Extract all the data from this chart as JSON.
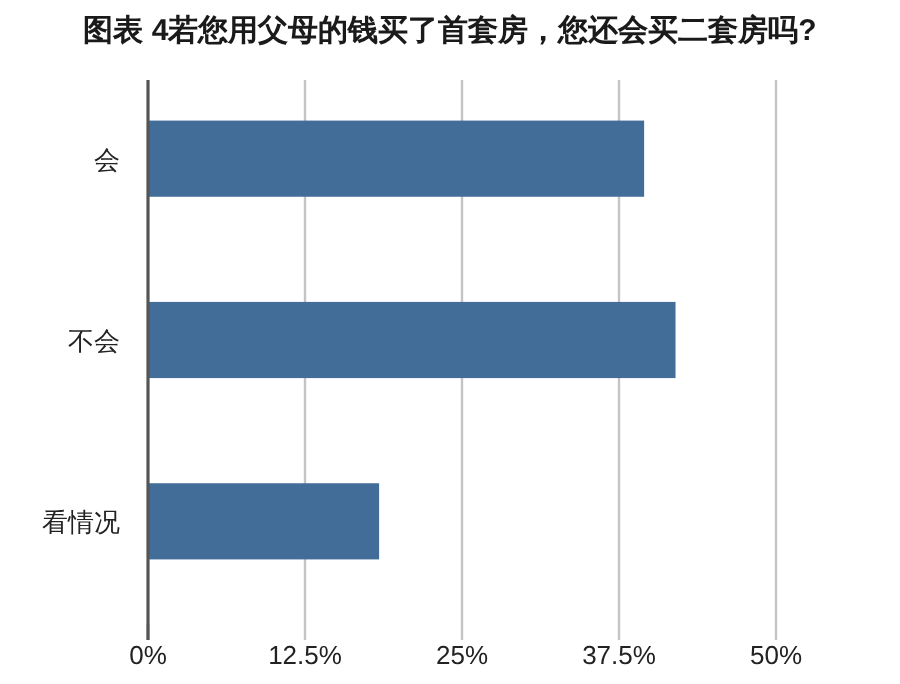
{
  "chart_data": {
    "type": "bar",
    "orientation": "horizontal",
    "title": "图表 4若您用父母的钱买了首套房，您还会买二套房吗?",
    "categories": [
      "会",
      "不会",
      "看情况"
    ],
    "values": [
      39.5,
      42.0,
      18.4
    ],
    "color": "#426d99",
    "xlim": [
      0,
      50
    ],
    "xticks": [
      {
        "value": 0,
        "label": "0%"
      },
      {
        "value": 12.5,
        "label": "12.5%"
      },
      {
        "value": 25,
        "label": "25%"
      },
      {
        "value": 37.5,
        "label": "37.5%"
      },
      {
        "value": 50,
        "label": "50%"
      }
    ],
    "grid": "x"
  }
}
